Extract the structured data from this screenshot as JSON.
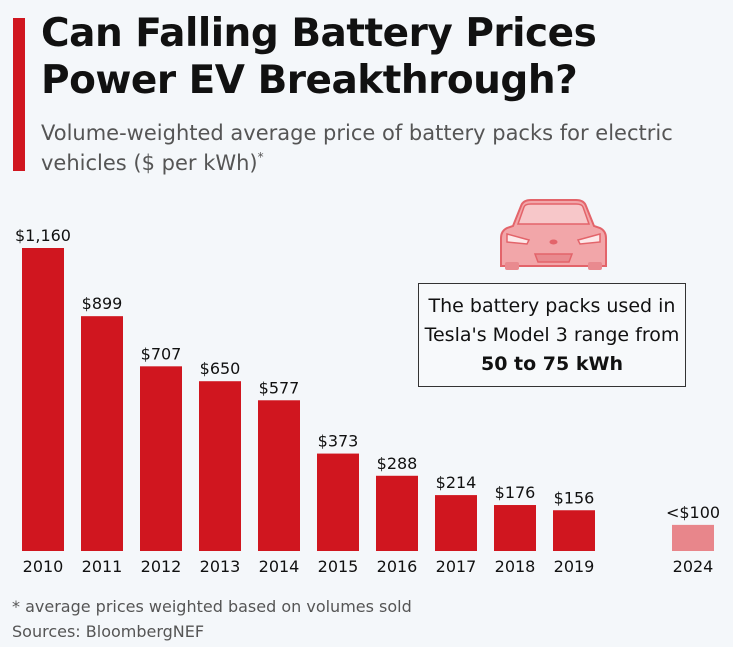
{
  "header": {
    "title": "Can Falling Battery Prices Power EV Breakthrough?",
    "subtitle": "Volume-weighted average price of battery packs for electric vehicles ($ per kWh)",
    "subtitle_mark": "*"
  },
  "callout": {
    "text_before": "The battery packs used in Tesla's Model 3 range from ",
    "text_bold": "50 to 75 kWh"
  },
  "icon": "car-front-icon",
  "colors": {
    "accent": "#d0161f",
    "bar": "#d0161f",
    "forecast_bar": "#e8868b"
  },
  "footer": {
    "footnote": "* average prices weighted based on volumes sold",
    "source": "Sources: BloombergNEF"
  },
  "chart_data": {
    "type": "bar",
    "title": "Can Falling Battery Prices Power EV Breakthrough?",
    "ylabel": "",
    "xlabel": "",
    "ylim": [
      0,
      1200
    ],
    "grid": false,
    "categories": [
      "2010",
      "2011",
      "2012",
      "2013",
      "2014",
      "2015",
      "2016",
      "2017",
      "2018",
      "2019",
      "2024"
    ],
    "values": [
      1160,
      899,
      707,
      650,
      577,
      373,
      288,
      214,
      176,
      156,
      100
    ],
    "labels": [
      "$1,160",
      "$899",
      "$707",
      "$650",
      "$577",
      "$373",
      "$288",
      "$214",
      "$176",
      "$156",
      "<$100"
    ],
    "forecast": [
      false,
      false,
      false,
      false,
      false,
      false,
      false,
      false,
      false,
      false,
      true
    ]
  }
}
